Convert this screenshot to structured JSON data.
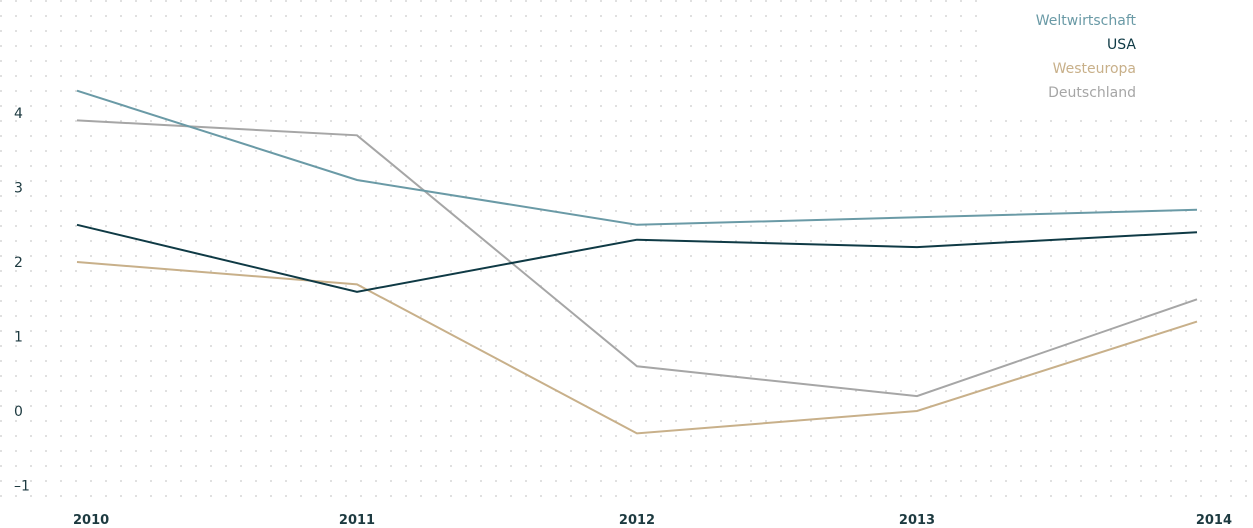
{
  "chart_data": {
    "type": "line",
    "title": "",
    "xlabel": "",
    "ylabel": "",
    "categories": [
      "2010",
      "2011",
      "2012",
      "2013",
      "2014"
    ],
    "yticks": [
      4,
      3,
      2,
      1,
      0,
      -1
    ],
    "ytick_labels": [
      "4",
      "3",
      "2",
      "1",
      "0",
      "–1"
    ],
    "ylim": [
      -1.25,
      4.5
    ],
    "grid": "dotted",
    "legend_position": "top-right",
    "series": [
      {
        "name": "Weltwirtschaft",
        "color": "#6a9aa6",
        "values": [
          4.3,
          3.1,
          2.5,
          2.6,
          2.7
        ]
      },
      {
        "name": "USA",
        "color": "#0f3a45",
        "values": [
          2.5,
          1.6,
          2.3,
          2.2,
          2.4
        ]
      },
      {
        "name": "Westeuropa",
        "color": "#c8b08a",
        "values": [
          2.0,
          1.7,
          -0.3,
          0.0,
          1.2
        ]
      },
      {
        "name": "Deutschland",
        "color": "#a6a6a6",
        "values": [
          3.9,
          3.7,
          0.6,
          0.2,
          1.5
        ]
      }
    ]
  }
}
